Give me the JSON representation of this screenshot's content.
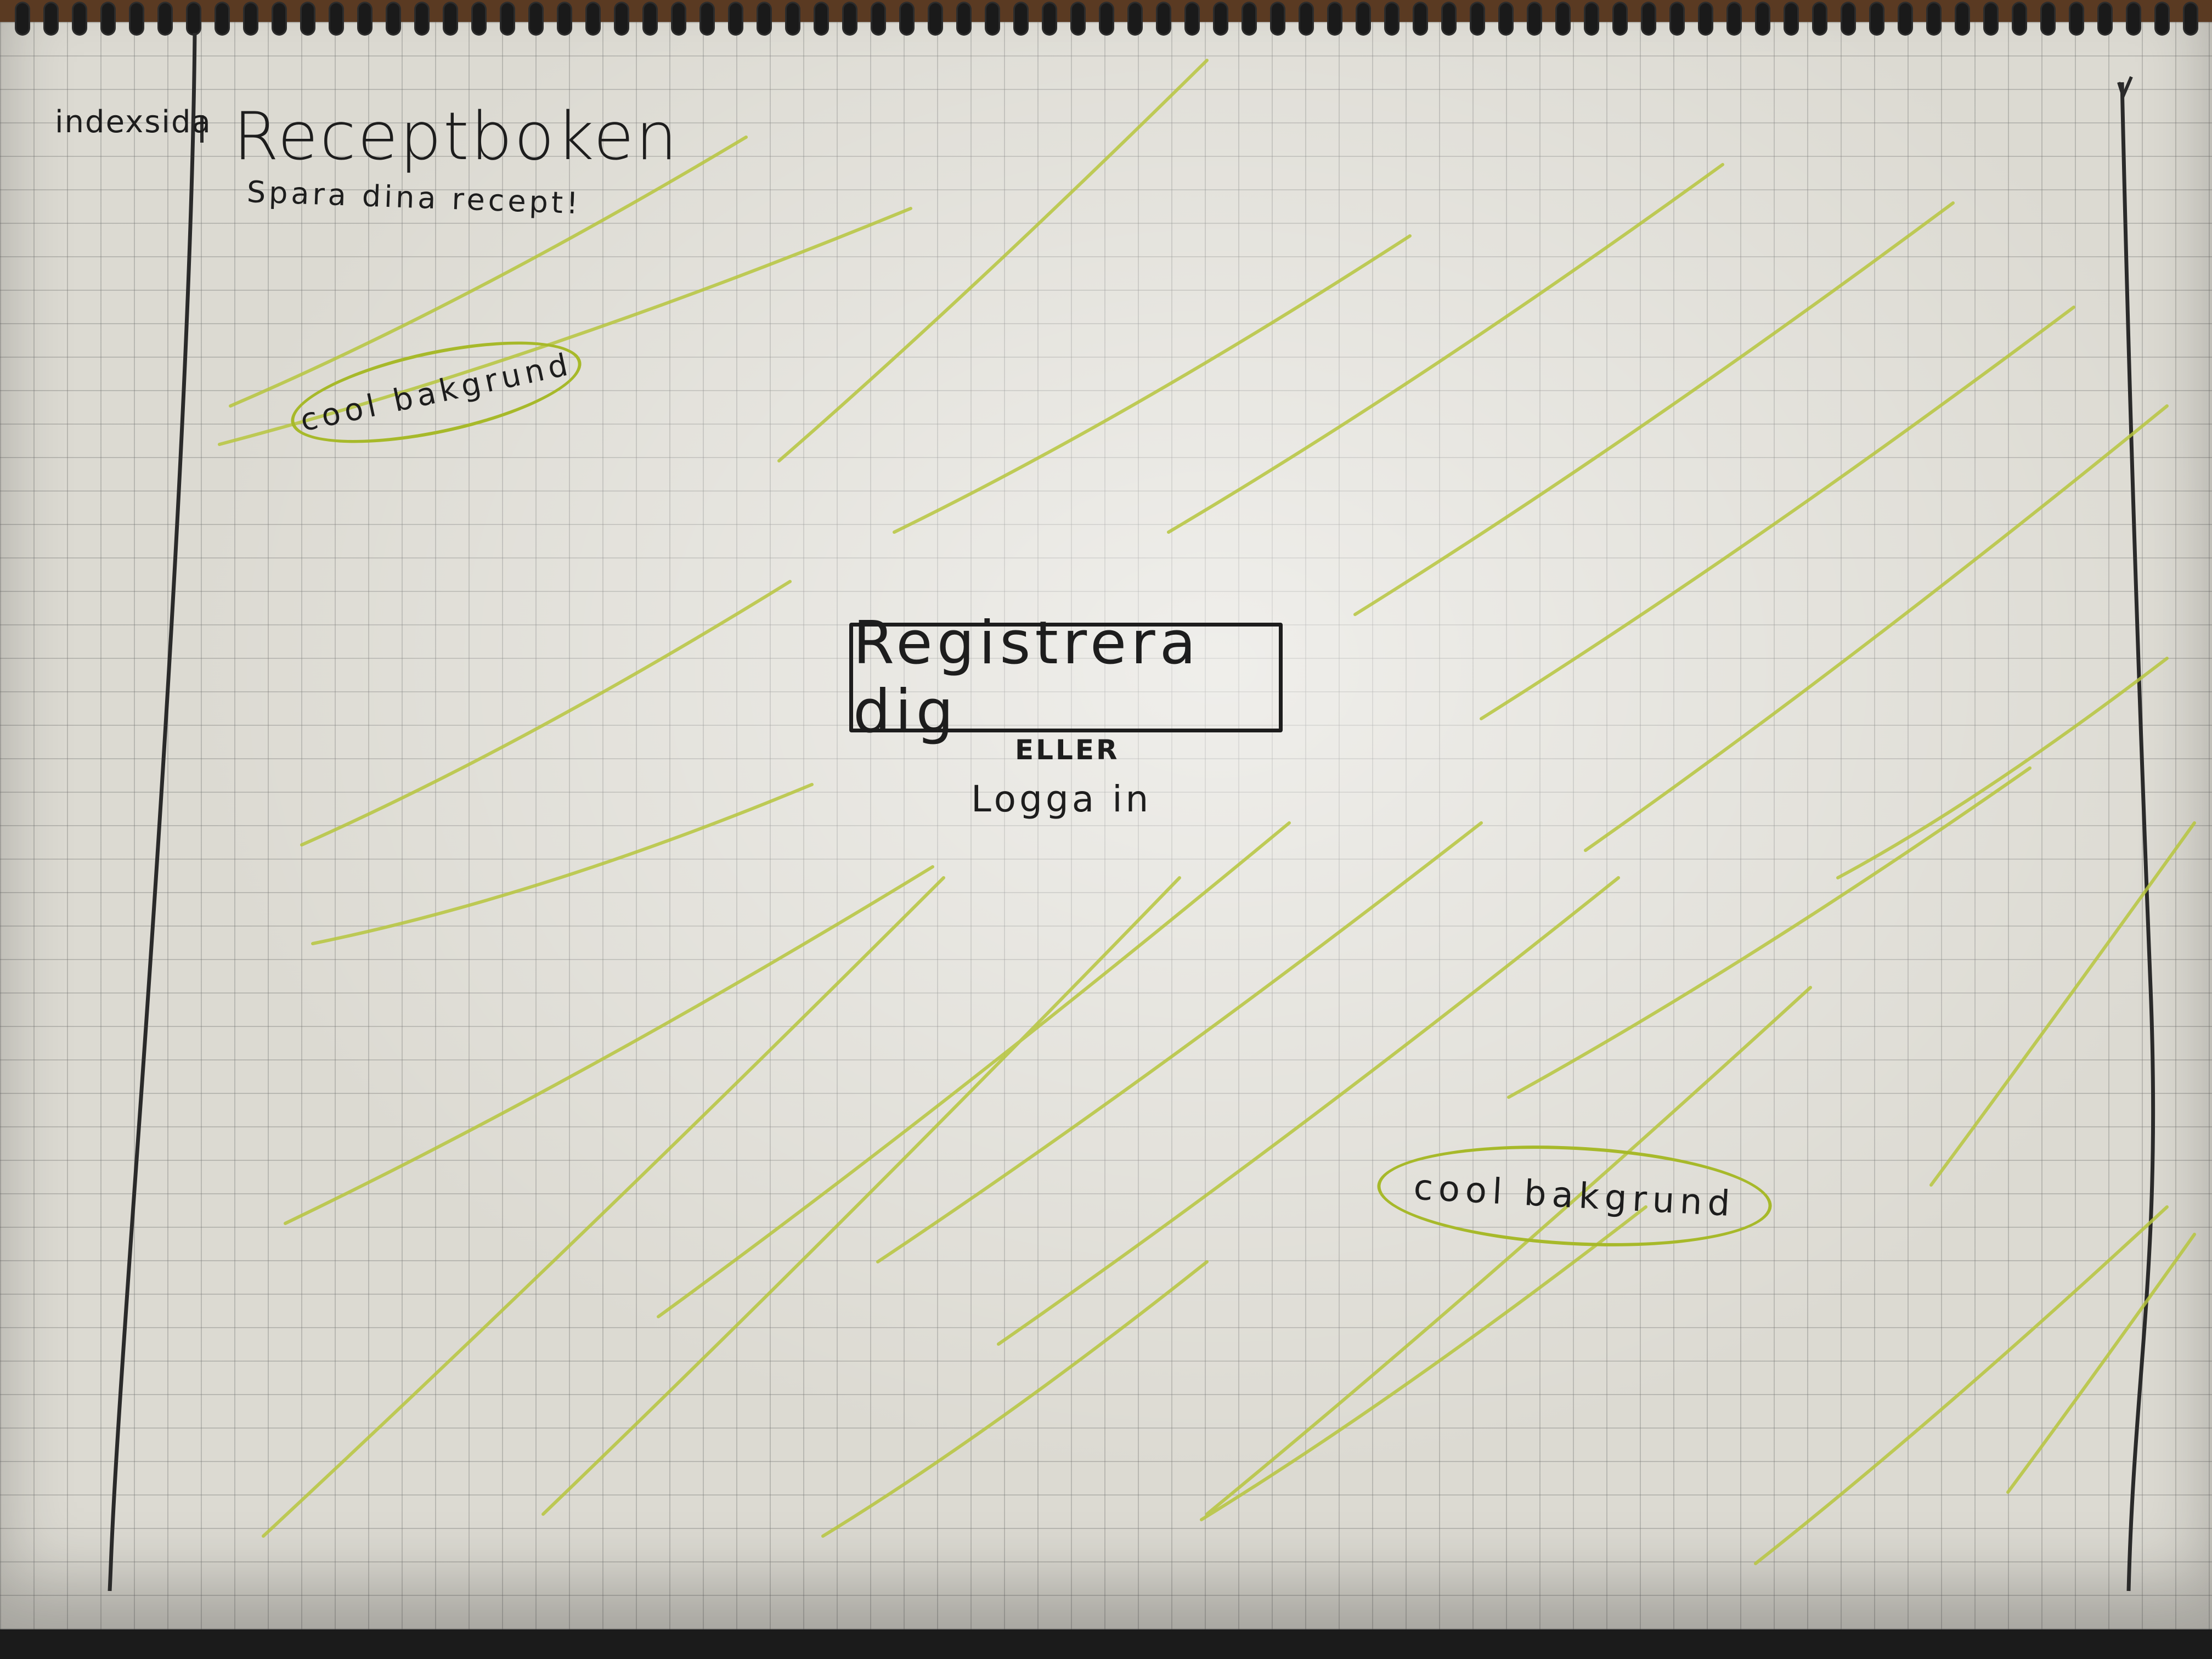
{
  "sketch": {
    "side_label": "indexsida",
    "app_title": "Receptboken",
    "app_subtitle": "Spara dina recept!",
    "register_button_label": "Registrera dig",
    "or_label": "ELLER",
    "login_link_label": "Logga in",
    "background_note_1": "cool bakgrund",
    "background_note_2": "cool bakgrund"
  },
  "colors": {
    "paper": "#dcdad2",
    "grid": "#8a8a8a",
    "ink": "#1d1d1d",
    "highlighter": "#a7b92a"
  },
  "icons": {
    "spiral_binding": "spiral-binding-icon"
  }
}
